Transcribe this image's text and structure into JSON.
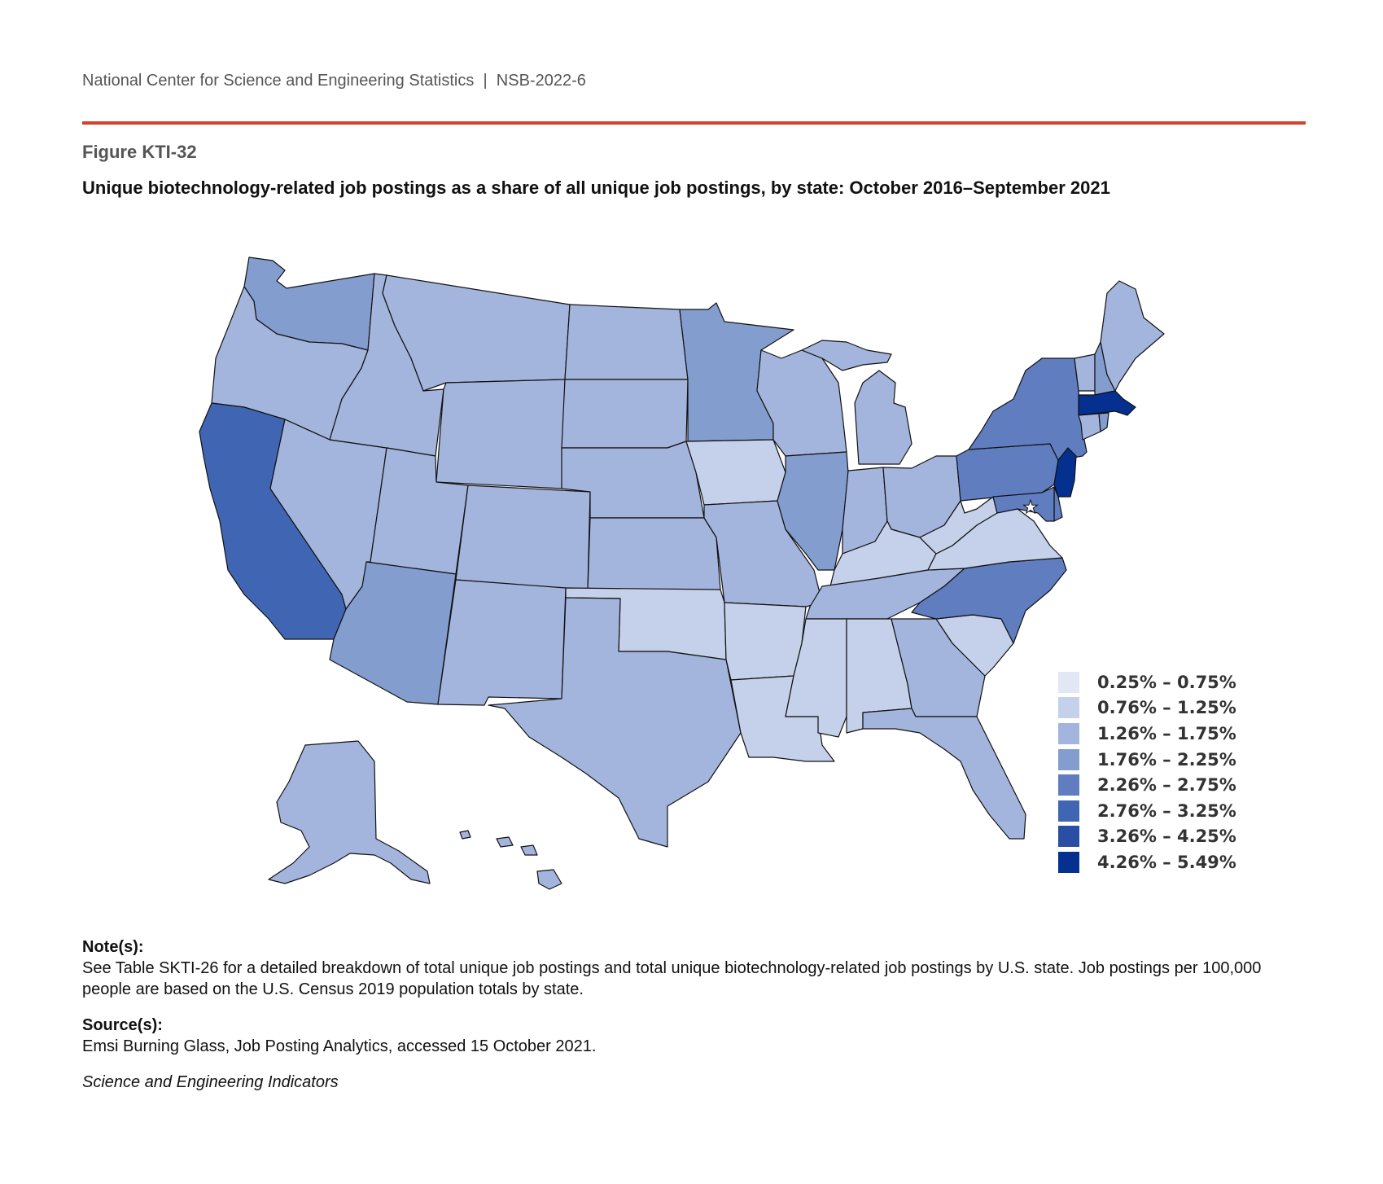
{
  "header": "National Center for Science and Engineering Statistics  |  NSB-2022-6",
  "figure_label": "Figure KTI-32",
  "title": "Unique biotechnology-related job postings as a share of all unique job postings, by state: October 2016–September 2021",
  "legend": [
    {
      "label": "0.25% – 0.75%",
      "color": "#e1e7f5"
    },
    {
      "label": "0.76% – 1.25%",
      "color": "#c5d0ea"
    },
    {
      "label": "1.26% – 1.75%",
      "color": "#a3b5dd"
    },
    {
      "label": "1.76% – 2.25%",
      "color": "#849dcf"
    },
    {
      "label": "2.26% – 2.75%",
      "color": "#5f7dbf"
    },
    {
      "label": "2.76% – 3.25%",
      "color": "#4066b3"
    },
    {
      "label": "3.26% – 4.25%",
      "color": "#2a4ea3"
    },
    {
      "label": "4.26% – 5.49%",
      "color": "#05308f"
    }
  ],
  "state_bins": {
    "WA": 3,
    "OR": 2,
    "CA": 5,
    "NV": 2,
    "ID": 2,
    "MT": 2,
    "WY": 2,
    "UT": 2,
    "AZ": 3,
    "CO": 2,
    "NM": 2,
    "ND": 2,
    "SD": 2,
    "NE": 2,
    "KS": 2,
    "OK": 1,
    "TX": 2,
    "MN": 3,
    "IA": 1,
    "MO": 2,
    "AR": 1,
    "LA": 1,
    "WI": 2,
    "IL": 3,
    "MI": 2,
    "IN": 2,
    "OH": 2,
    "KY": 1,
    "TN": 2,
    "MS": 1,
    "AL": 1,
    "GA": 2,
    "FL": 2,
    "SC": 1,
    "NC": 4,
    "VA": 1,
    "WV": 1,
    "PA": 4,
    "NY": 4,
    "VT": 2,
    "NH": 3,
    "ME": 2,
    "MA": 7,
    "RI": 3,
    "CT": 2,
    "NJ": 7,
    "DE": 4,
    "MD": 4,
    "AK": 2,
    "HI": 2
  },
  "notes_heading": "Note(s):",
  "notes_text": "See Table SKTI-26 for a detailed breakdown of total unique job postings and total unique biotechnology-related job postings by U.S. state. Job postings per 100,000 people are based on the U.S. Census 2019 population totals by state.",
  "source_heading": "Source(s):",
  "source_text": "Emsi Burning Glass, Job Posting Analytics, accessed 15 October 2021.",
  "publication": "Science and Engineering Indicators"
}
